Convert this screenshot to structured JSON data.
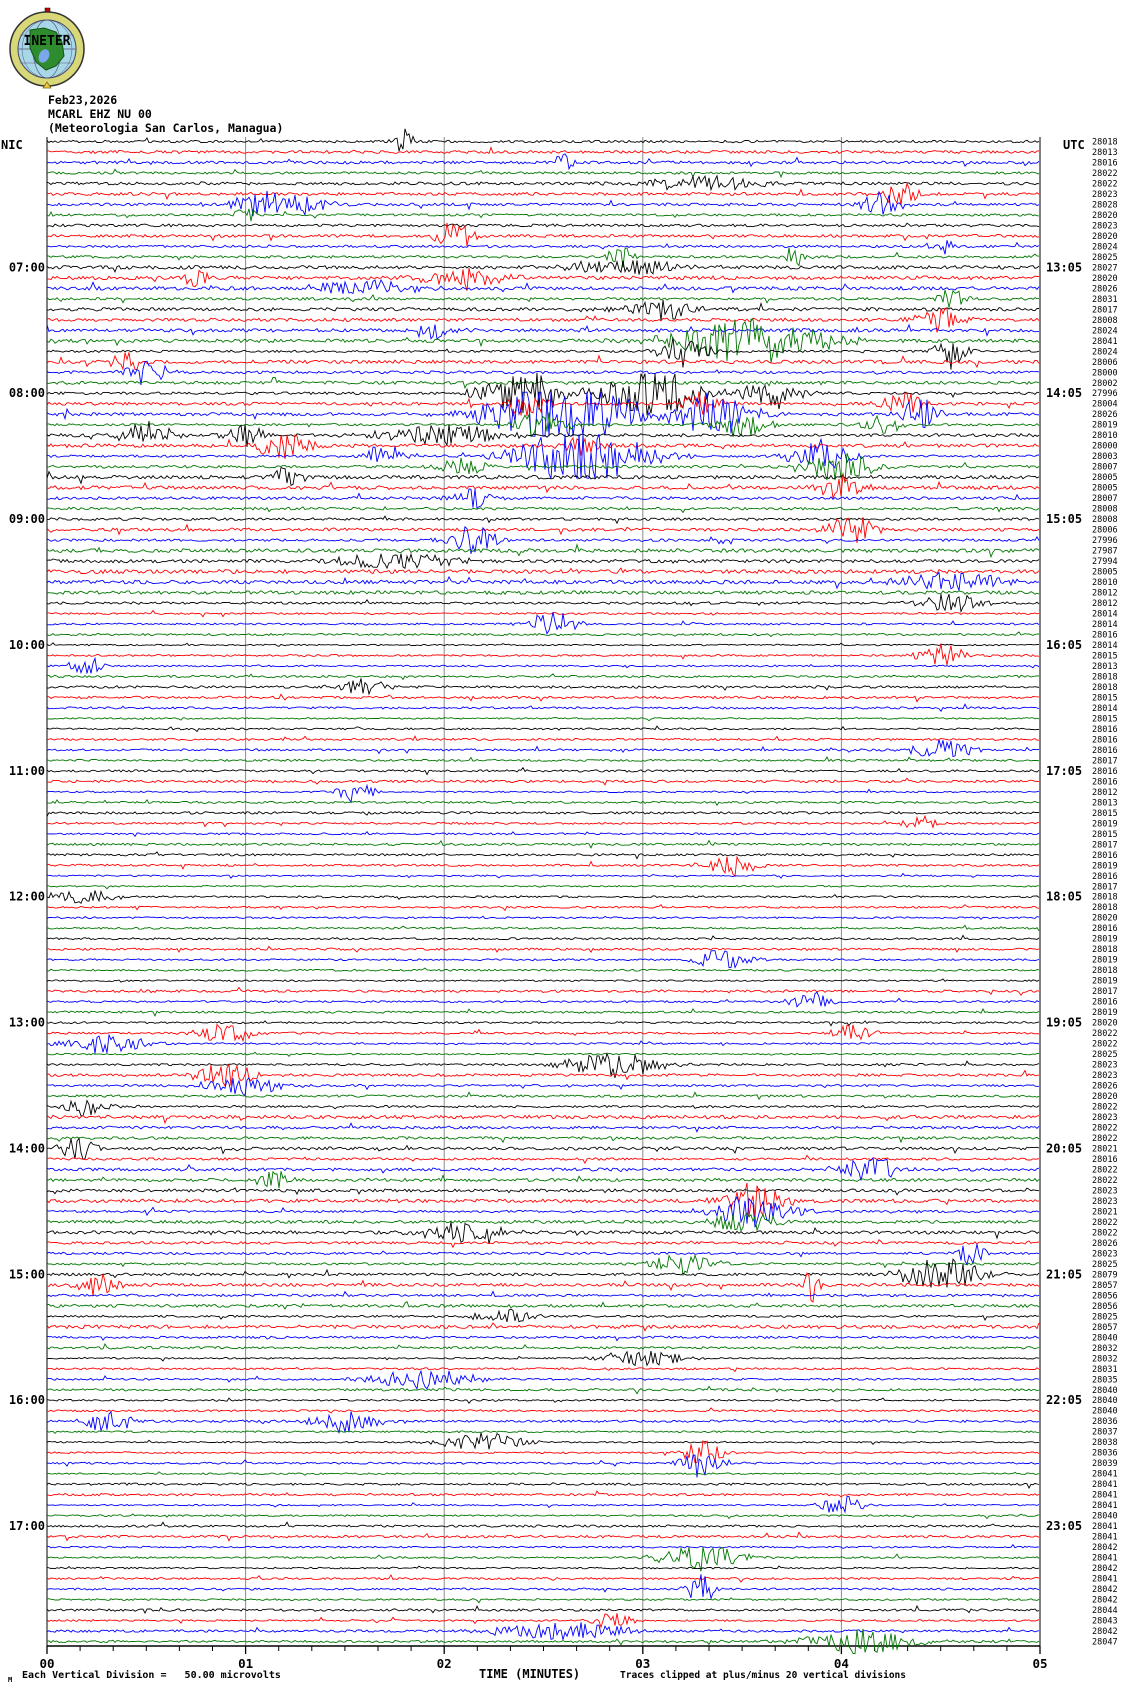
{
  "logo": {
    "text": "INETER"
  },
  "header": {
    "date": "Feb23,2026",
    "station": "MCARL EHZ NU 00",
    "location": "(Meteorologia San Carlos, Managua)"
  },
  "axes": {
    "left_tz": "NIC",
    "right_tz": "UTC"
  },
  "footer": {
    "scale_mark": "M",
    "scale_label": "Each Vertical Division =   50.00 microvolts",
    "xlabel": "TIME (MINUTES)",
    "clip_note": "Traces clipped at plus/minus 20 vertical divisions"
  },
  "chart_data": {
    "type": "line",
    "kind": "helicorder-seismogram",
    "title": "MCARL EHZ NU 00 (Meteorologia San Carlos, Managua) Feb23,2026",
    "xlabel": "TIME (MINUTES)",
    "x_ticks": [
      "00",
      "01",
      "02",
      "03",
      "04",
      "05"
    ],
    "x_range_minutes": [
      0,
      5
    ],
    "minutes_per_line": 5,
    "lines_per_hour": 12,
    "trace_colors_cycle": [
      "#000000",
      "#ff0000",
      "#0000ff",
      "#007700"
    ],
    "grid_color": "#8a8a8a",
    "clip_divisions": 20,
    "left_time_labels": [
      "07:00",
      "08:00",
      "09:00",
      "10:00",
      "11:00",
      "12:00",
      "13:00",
      "14:00",
      "15:00",
      "16:00",
      "17:00"
    ],
    "right_time_labels": [
      "13:05",
      "14:05",
      "15:05",
      "16:05",
      "17:05",
      "18:05",
      "19:05",
      "20:05",
      "21:05",
      "22:05",
      "23:05"
    ],
    "hour_label_first_line_index": 13,
    "trace_offsets": [
      28018,
      28013,
      28016,
      28022,
      28022,
      28023,
      28028,
      28020,
      28023,
      28020,
      28024,
      28025,
      28027,
      28020,
      28026,
      28031,
      28017,
      28008,
      28024,
      28041,
      28024,
      28006,
      28000,
      28002,
      27996,
      28004,
      28026,
      28019,
      28010,
      28000,
      28003,
      28007,
      28005,
      28005,
      28007,
      28008,
      28008,
      28006,
      27996,
      27987,
      27994,
      28005,
      28010,
      28012,
      28012,
      28014,
      28014,
      28016,
      28014,
      28015,
      28013,
      28018,
      28018,
      28015,
      28014,
      28015,
      28016,
      28016,
      28016,
      28017,
      28016,
      28016,
      28012,
      28013,
      28015,
      28019,
      28015,
      28017,
      28016,
      28019,
      28016,
      28017,
      28018,
      28018,
      28020,
      28016,
      28019,
      28018,
      28019,
      28018,
      28019,
      28017,
      28016,
      28019,
      28020,
      28022,
      28022,
      28025,
      28023,
      28023,
      28026,
      28020,
      28022,
      28023,
      28022,
      28022,
      28021,
      28016,
      28022,
      28022,
      28023,
      28023,
      28021,
      28022,
      28022,
      28026,
      28023,
      28025,
      28079,
      28057,
      28056,
      28056,
      28025,
      28057,
      28040,
      28032,
      28032,
      28031,
      28035,
      28040,
      28040,
      28040,
      28036,
      28037,
      28038,
      28036,
      28039,
      28041,
      28041,
      28041,
      28041,
      28040,
      28041,
      28041,
      28042,
      28041,
      28042,
      28041,
      28042,
      28042,
      28044,
      28043,
      28042,
      28047
    ],
    "events_format": [
      "line",
      "minute",
      "amplitude_px",
      "width_min"
    ],
    "events": [
      [
        1,
        1.8,
        10,
        0.06
      ],
      [
        3,
        2.6,
        8,
        0.05
      ],
      [
        5,
        3.3,
        6,
        0.3
      ],
      [
        6,
        4.3,
        8,
        0.1
      ],
      [
        7,
        1.15,
        12,
        0.22
      ],
      [
        7,
        4.2,
        10,
        0.1
      ],
      [
        8,
        1.0,
        8,
        0.05
      ],
      [
        10,
        2.05,
        12,
        0.09
      ],
      [
        11,
        4.5,
        8,
        0.06
      ],
      [
        12,
        2.9,
        10,
        0.07
      ],
      [
        12,
        3.75,
        10,
        0.06
      ],
      [
        13,
        2.9,
        6,
        0.3
      ],
      [
        14,
        0.75,
        8,
        0.06
      ],
      [
        14,
        2.1,
        8,
        0.2
      ],
      [
        15,
        1.6,
        6,
        0.3
      ],
      [
        16,
        4.55,
        8,
        0.08
      ],
      [
        17,
        3.1,
        8,
        0.18
      ],
      [
        18,
        4.5,
        10,
        0.12
      ],
      [
        19,
        1.95,
        8,
        0.1
      ],
      [
        20,
        3.55,
        20,
        0.35
      ],
      [
        21,
        3.2,
        14,
        0.12
      ],
      [
        21,
        4.55,
        16,
        0.08
      ],
      [
        22,
        0.4,
        8,
        0.08
      ],
      [
        23,
        0.5,
        10,
        0.1
      ],
      [
        25,
        2.4,
        18,
        0.2
      ],
      [
        25,
        3.05,
        18,
        0.25
      ],
      [
        25,
        3.65,
        12,
        0.15
      ],
      [
        26,
        2.4,
        12,
        0.1
      ],
      [
        26,
        3.3,
        10,
        0.1
      ],
      [
        26,
        4.3,
        10,
        0.1
      ],
      [
        27,
        2.6,
        30,
        0.35
      ],
      [
        27,
        3.35,
        18,
        0.2
      ],
      [
        27,
        4.4,
        12,
        0.1
      ],
      [
        28,
        2.5,
        12,
        0.12
      ],
      [
        28,
        3.5,
        12,
        0.12
      ],
      [
        28,
        4.2,
        8,
        0.1
      ],
      [
        29,
        0.5,
        12,
        0.12
      ],
      [
        29,
        1.0,
        10,
        0.1
      ],
      [
        29,
        2.0,
        8,
        0.3
      ],
      [
        30,
        1.2,
        10,
        0.15
      ],
      [
        30,
        2.7,
        8,
        0.12
      ],
      [
        31,
        1.7,
        10,
        0.1
      ],
      [
        31,
        2.7,
        26,
        0.3
      ],
      [
        31,
        3.9,
        12,
        0.15
      ],
      [
        32,
        2.1,
        10,
        0.1
      ],
      [
        32,
        4.0,
        14,
        0.15
      ],
      [
        33,
        1.2,
        10,
        0.08
      ],
      [
        34,
        4.0,
        10,
        0.1
      ],
      [
        35,
        2.15,
        8,
        0.1
      ],
      [
        38,
        4.05,
        12,
        0.12
      ],
      [
        39,
        2.15,
        12,
        0.12
      ],
      [
        41,
        1.75,
        6,
        0.3
      ],
      [
        43,
        4.55,
        8,
        0.25
      ],
      [
        45,
        4.55,
        8,
        0.15
      ],
      [
        47,
        2.55,
        10,
        0.12
      ],
      [
        50,
        4.5,
        10,
        0.12
      ],
      [
        51,
        0.2,
        8,
        0.08
      ],
      [
        53,
        1.6,
        8,
        0.1
      ],
      [
        59,
        4.5,
        8,
        0.15
      ],
      [
        63,
        1.55,
        8,
        0.1
      ],
      [
        66,
        4.4,
        6,
        0.1
      ],
      [
        70,
        3.45,
        8,
        0.12
      ],
      [
        73,
        0.2,
        6,
        0.15
      ],
      [
        79,
        3.4,
        8,
        0.15
      ],
      [
        83,
        3.85,
        8,
        0.1
      ],
      [
        86,
        0.9,
        8,
        0.15
      ],
      [
        86,
        4.05,
        8,
        0.1
      ],
      [
        87,
        0.3,
        8,
        0.2
      ],
      [
        89,
        2.85,
        10,
        0.25
      ],
      [
        90,
        0.9,
        10,
        0.15
      ],
      [
        91,
        1.0,
        8,
        0.2
      ],
      [
        93,
        0.2,
        8,
        0.1
      ],
      [
        97,
        0.15,
        10,
        0.1
      ],
      [
        99,
        4.15,
        10,
        0.15
      ],
      [
        100,
        1.15,
        8,
        0.1
      ],
      [
        102,
        3.55,
        14,
        0.15
      ],
      [
        103,
        3.55,
        12,
        0.2
      ],
      [
        104,
        3.5,
        10,
        0.15
      ],
      [
        105,
        2.1,
        8,
        0.2
      ],
      [
        107,
        4.65,
        12,
        0.06
      ],
      [
        108,
        3.2,
        10,
        0.15
      ],
      [
        109,
        4.5,
        14,
        0.2
      ],
      [
        110,
        0.25,
        10,
        0.1
      ],
      [
        110,
        3.85,
        18,
        0.04
      ],
      [
        113,
        2.3,
        6,
        0.15
      ],
      [
        117,
        3.0,
        6,
        0.2
      ],
      [
        119,
        1.9,
        8,
        0.25
      ],
      [
        123,
        0.3,
        10,
        0.12
      ],
      [
        123,
        1.5,
        10,
        0.15
      ],
      [
        125,
        2.2,
        8,
        0.2
      ],
      [
        126,
        3.3,
        10,
        0.1
      ],
      [
        127,
        3.3,
        12,
        0.1
      ],
      [
        131,
        4.0,
        8,
        0.1
      ],
      [
        136,
        3.3,
        10,
        0.2
      ],
      [
        139,
        3.3,
        12,
        0.07
      ],
      [
        142,
        2.85,
        8,
        0.1
      ],
      [
        143,
        2.6,
        8,
        0.3
      ],
      [
        144,
        4.1,
        10,
        0.25
      ]
    ]
  }
}
